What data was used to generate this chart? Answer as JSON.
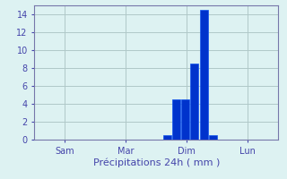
{
  "xlabel": "Précipitations 24h ( mm )",
  "background_color": "#ddf2f2",
  "bar_color": "#0033cc",
  "bar_edge_color": "#1155ee",
  "grid_color": "#b0c8c8",
  "axis_color": "#7777aa",
  "text_color": "#4444aa",
  "xlim": [
    0,
    8
  ],
  "ylim": [
    0,
    15
  ],
  "yticks": [
    0,
    2,
    4,
    6,
    8,
    10,
    12,
    14
  ],
  "xtick_positions": [
    1,
    3,
    5,
    7
  ],
  "xtick_labels": [
    "Sam",
    "Mar",
    "Dim",
    "Lun"
  ],
  "bar_positions": [
    4.35,
    4.65,
    4.95,
    5.25,
    5.55,
    5.85
  ],
  "bar_heights": [
    0.5,
    4.5,
    4.5,
    8.5,
    14.5,
    0.5
  ],
  "bar_width": 0.27
}
